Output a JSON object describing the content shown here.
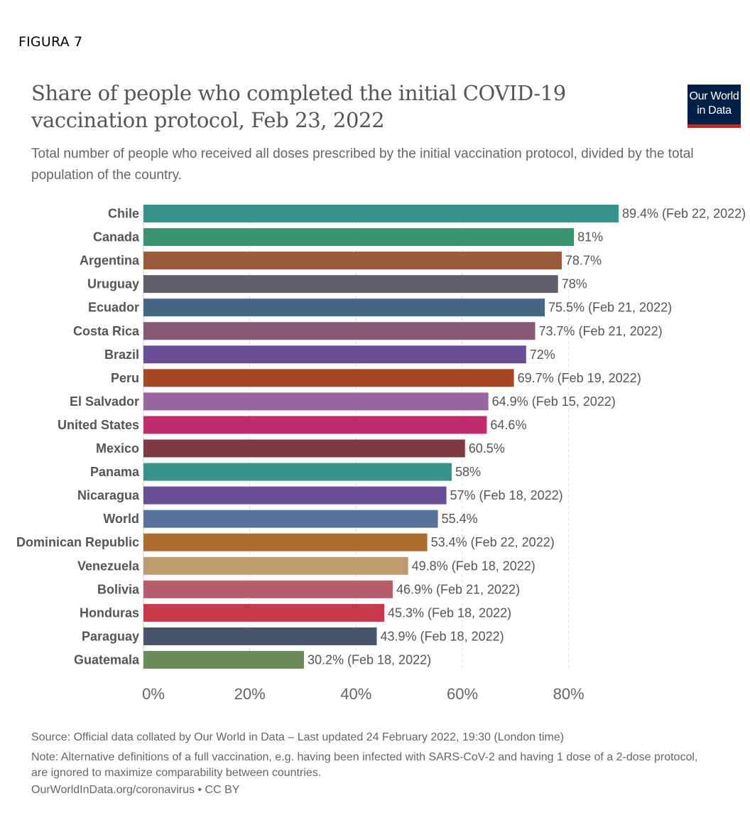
{
  "figure_label": "FIGURA 7",
  "logo": {
    "line1": "Our World",
    "line2": "in Data"
  },
  "footer": {
    "source": "Source: Official data collated by Our World in Data – Last updated 24 February 2022, 19:30 (London time)",
    "note": "Note: Alternative definitions of a full vaccination, e.g. having been infected with SARS-CoV-2 and having 1 dose of a 2-dose protocol, are ignored to maximize comparability between countries.",
    "credit": "OurWorldInData.org/coronavirus • CC BY"
  },
  "chart_data": {
    "type": "bar",
    "orientation": "horizontal",
    "title": "Share of people who completed the initial COVID-19 vaccination protocol, Feb 23, 2022",
    "subtitle": "Total number of people who received all doses prescribed by the initial vaccination protocol, divided by the total population of the country.",
    "xlim": [
      0,
      89.4
    ],
    "x_ticks": [
      0,
      20,
      40,
      60,
      80
    ],
    "x_tick_labels": [
      "0%",
      "20%",
      "40%",
      "60%",
      "80%"
    ],
    "grid": "vertical dashed",
    "categories": [
      "Chile",
      "Canada",
      "Argentina",
      "Uruguay",
      "Ecuador",
      "Costa Rica",
      "Brazil",
      "Peru",
      "El Salvador",
      "United States",
      "Mexico",
      "Panama",
      "Nicaragua",
      "World",
      "Dominican Republic",
      "Venezuela",
      "Bolivia",
      "Honduras",
      "Paraguay",
      "Guatemala"
    ],
    "values": [
      89.4,
      81,
      78.7,
      78,
      75.5,
      73.7,
      72,
      69.7,
      64.9,
      64.6,
      60.5,
      58,
      57,
      55.4,
      53.4,
      49.8,
      46.9,
      45.3,
      43.9,
      30.2
    ],
    "value_labels": [
      "89.4% (Feb 22, 2022)",
      "81%",
      "78.7%",
      "78%",
      "75.5% (Feb 21, 2022)",
      "73.7% (Feb 21, 2022)",
      "72%",
      "69.7% (Feb 19, 2022)",
      "64.9% (Feb 15, 2022)",
      "64.6%",
      "60.5%",
      "58%",
      "57% (Feb 18, 2022)",
      "55.4%",
      "53.4% (Feb 22, 2022)",
      "49.8% (Feb 18, 2022)",
      "46.9% (Feb 21, 2022)",
      "45.3% (Feb 18, 2022)",
      "43.9% (Feb 18, 2022)",
      "30.2% (Feb 18, 2022)"
    ],
    "colors": [
      "#38938a",
      "#3c9370",
      "#9a5b3a",
      "#60606a",
      "#456687",
      "#865a75",
      "#6b4d97",
      "#a34725",
      "#9b65a1",
      "#c12d6c",
      "#7f3a40",
      "#38938a",
      "#6b4d97",
      "#5a729e",
      "#ad6b2c",
      "#bf9a6e",
      "#b65e6c",
      "#c9374b",
      "#47546b",
      "#6b8c58"
    ]
  }
}
